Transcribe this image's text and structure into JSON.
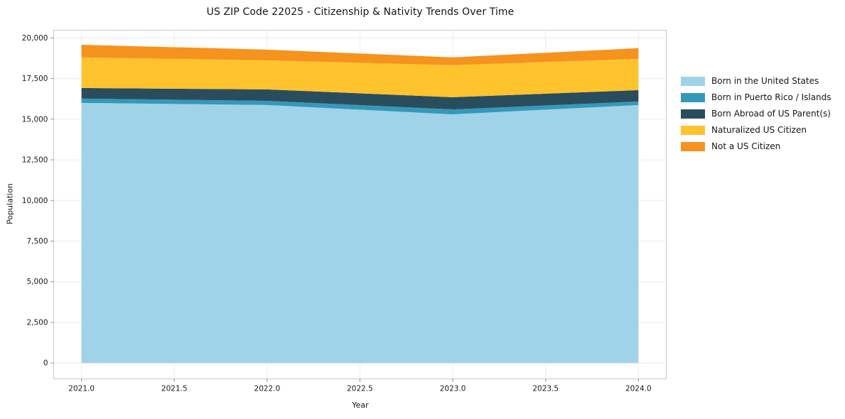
{
  "chart_data": {
    "type": "area",
    "stacked": true,
    "title": "US ZIP Code 22025 - Citizenship & Nativity Trends Over Time",
    "xlabel": "Year",
    "ylabel": "Population",
    "x": [
      2021,
      2022,
      2023,
      2024
    ],
    "series": [
      {
        "name": "Born in the United States",
        "color": "#A0D3E8",
        "values": [
          16000,
          15870,
          15300,
          15870
        ]
      },
      {
        "name": "Born in Puerto Rico / Islands",
        "color": "#3598BA",
        "values": [
          270,
          260,
          300,
          220
        ]
      },
      {
        "name": "Born Abroad of US Parent(s)",
        "color": "#2A4D5E",
        "values": [
          650,
          700,
          750,
          700
        ]
      },
      {
        "name": "Naturalized US Citizen",
        "color": "#FEC32D",
        "values": [
          1880,
          1790,
          1970,
          1920
        ]
      },
      {
        "name": "Not a US Citizen",
        "color": "#F6921E",
        "values": [
          780,
          660,
          480,
          660
        ]
      }
    ],
    "totals": [
      19580,
      19280,
      18800,
      19370
    ],
    "xlim": [
      2020.85,
      2024.15
    ],
    "ylim": [
      -975,
      20475
    ],
    "xticks": {
      "values": [
        2021.0,
        2021.5,
        2022.0,
        2022.5,
        2023.0,
        2023.5,
        2024.0
      ],
      "labels": [
        "2021.0",
        "2021.5",
        "2022.0",
        "2022.5",
        "2023.0",
        "2023.5",
        "2024.0"
      ]
    },
    "yticks": {
      "values": [
        0,
        2500,
        5000,
        7500,
        10000,
        12500,
        15000,
        17500,
        20000
      ],
      "labels": [
        "0",
        "2,500",
        "5,000",
        "7,500",
        "10,000",
        "12,500",
        "15,000",
        "17,500",
        "20,000"
      ]
    },
    "grid": true,
    "legend_position": "right",
    "colors": {
      "grid": "#ececec",
      "frame": "#c9c9c9",
      "tick": "#8a8a8a",
      "text": "#1a1a1a"
    }
  }
}
